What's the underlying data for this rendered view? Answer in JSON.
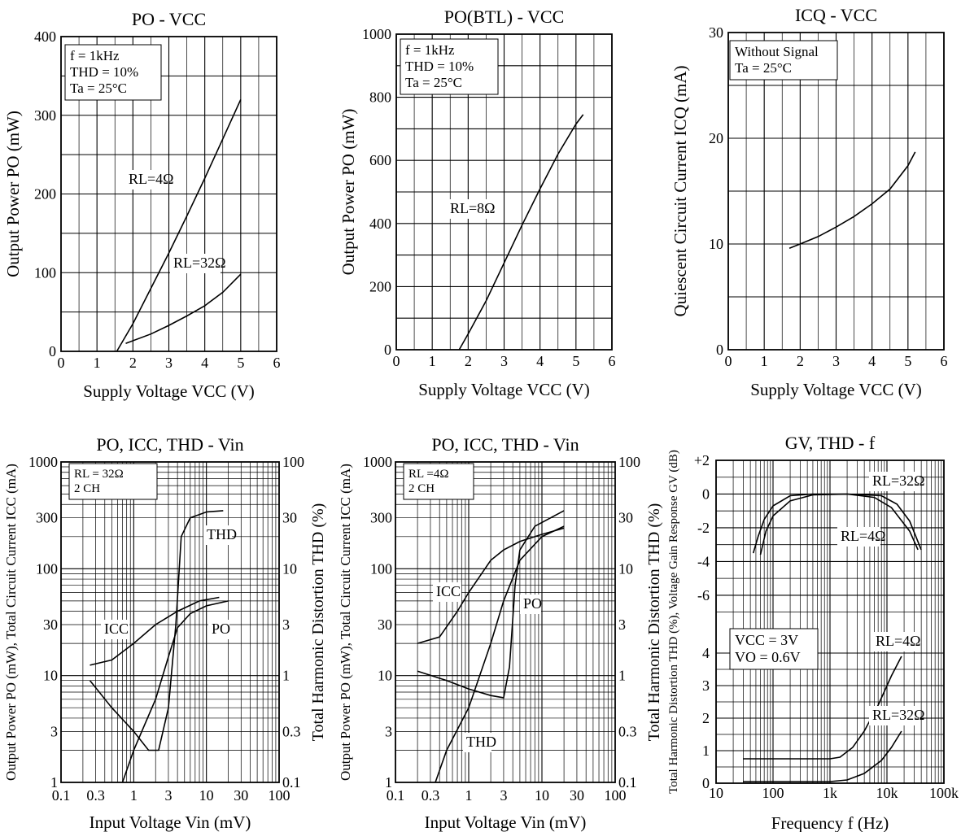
{
  "chart_data": [
    {
      "id": "po_vcc",
      "type": "line",
      "title": "PO - VCC",
      "xlabel": "Supply Voltage VCC (V)",
      "ylabel": "Output Power PO (mW)",
      "xlim": [
        0,
        6
      ],
      "ylim": [
        0,
        400
      ],
      "x_ticks": [
        "0",
        "1",
        "2",
        "3",
        "4",
        "5",
        "6"
      ],
      "y_ticks": [
        "0",
        "100",
        "200",
        "300",
        "400"
      ],
      "conditions": [
        "f = 1kHz",
        "THD = 10%",
        "Ta = 25°C"
      ],
      "series": [
        {
          "name": "RL=4Ω",
          "points": [
            [
              1.55,
              0
            ],
            [
              2.0,
              35
            ],
            [
              2.5,
              80
            ],
            [
              3.0,
              125
            ],
            [
              3.5,
              172
            ],
            [
              4.0,
              220
            ],
            [
              4.5,
              270
            ],
            [
              5.0,
              320
            ]
          ]
        },
        {
          "name": "RL=32Ω",
          "points": [
            [
              1.8,
              10
            ],
            [
              2.5,
              22
            ],
            [
              3.0,
              33
            ],
            [
              3.5,
              45
            ],
            [
              4.0,
              58
            ],
            [
              4.5,
              75
            ],
            [
              5.0,
              98
            ]
          ]
        }
      ]
    },
    {
      "id": "pobtl_vcc",
      "type": "line",
      "title": "PO(BTL) - VCC",
      "xlabel": "Supply Voltage VCC (V)",
      "ylabel": "Output Power PO (mW)",
      "xlim": [
        0,
        6
      ],
      "ylim": [
        0,
        1000
      ],
      "x_ticks": [
        "0",
        "1",
        "2",
        "3",
        "4",
        "5",
        "6"
      ],
      "y_ticks": [
        "0",
        "200",
        "400",
        "600",
        "800",
        "1000"
      ],
      "conditions": [
        "f = 1kHz",
        "THD = 10%",
        "Ta = 25°C"
      ],
      "series": [
        {
          "name": "RL=8Ω",
          "points": [
            [
              1.75,
              0
            ],
            [
              2.0,
              50
            ],
            [
              2.5,
              155
            ],
            [
              3.0,
              275
            ],
            [
              3.5,
              395
            ],
            [
              4.0,
              510
            ],
            [
              4.5,
              620
            ],
            [
              5.0,
              715
            ],
            [
              5.2,
              745
            ]
          ]
        }
      ]
    },
    {
      "id": "icq_vcc",
      "type": "line",
      "title": "ICQ - VCC",
      "xlabel": "Supply Voltage VCC (V)",
      "ylabel": "Quiescent Circuit Current ICQ (mA)",
      "xlim": [
        0,
        6
      ],
      "ylim": [
        0,
        30
      ],
      "x_ticks": [
        "0",
        "1",
        "2",
        "3",
        "4",
        "5",
        "6"
      ],
      "y_ticks": [
        "0",
        "10",
        "20",
        "30"
      ],
      "conditions": [
        "Without Signal",
        "Ta = 25°C"
      ],
      "series": [
        {
          "name": "",
          "points": [
            [
              1.7,
              9.6
            ],
            [
              2.0,
              10.0
            ],
            [
              2.5,
              10.7
            ],
            [
              3.0,
              11.6
            ],
            [
              3.5,
              12.6
            ],
            [
              4.0,
              13.8
            ],
            [
              4.5,
              15.2
            ],
            [
              5.0,
              17.4
            ],
            [
              5.2,
              18.7
            ]
          ]
        }
      ]
    },
    {
      "id": "po_icc_thd_vin_32",
      "type": "line",
      "title": "PO, ICC, THD - Vin",
      "xlabel": "Input Voltage Vin (mV)",
      "ylabel": "Output Power PO (mW), Total Circuit Current ICC (mA)",
      "y2label": "Total Harmonic Distortion THD (%)",
      "x_scale": "log",
      "y_scale": "log",
      "xlim": [
        0.1,
        100
      ],
      "ylim": [
        1,
        1000
      ],
      "y2lim": [
        0.1,
        100
      ],
      "x_ticks": [
        "0.1",
        "0.3",
        "1",
        "3",
        "10",
        "30",
        "100"
      ],
      "y_ticks": [
        "1",
        "3",
        "10",
        "30",
        "100",
        "300",
        "1000"
      ],
      "y2_ticks": [
        "0.1",
        "0.3",
        "1",
        "3",
        "10",
        "30",
        "100"
      ],
      "conditions": [
        "RL = 32Ω",
        "2 CH"
      ],
      "series": [
        {
          "name": "THD",
          "axis": "right",
          "points": [
            [
              0.25,
              0.9
            ],
            [
              0.5,
              0.5
            ],
            [
              1.0,
              0.3
            ],
            [
              1.6,
              0.2
            ],
            [
              2.2,
              0.2
            ],
            [
              3.0,
              0.5
            ],
            [
              3.8,
              3
            ],
            [
              4.5,
              20
            ],
            [
              6,
              30
            ],
            [
              10,
              34
            ],
            [
              17,
              35
            ]
          ]
        },
        {
          "name": "ICC",
          "axis": "left",
          "points": [
            [
              0.25,
              12.5
            ],
            [
              0.5,
              14
            ],
            [
              1.0,
              20
            ],
            [
              2.0,
              30
            ],
            [
              4.0,
              40
            ],
            [
              8.0,
              50
            ],
            [
              15.0,
              54
            ]
          ]
        },
        {
          "name": "PO",
          "axis": "left",
          "points": [
            [
              0.7,
              1
            ],
            [
              1.0,
              2
            ],
            [
              2.0,
              6
            ],
            [
              3.0,
              15
            ],
            [
              4.0,
              28
            ],
            [
              6.0,
              38
            ],
            [
              10.0,
              45
            ],
            [
              20.0,
              50
            ]
          ]
        }
      ]
    },
    {
      "id": "po_icc_thd_vin_4",
      "type": "line",
      "title": "PO, ICC, THD - Vin",
      "xlabel": "Input Voltage Vin (mV)",
      "ylabel": "Output Power PO (mW), Total Circuit Current ICC (mA)",
      "y2label": "Total Harmonic Distortion THD (%)",
      "x_scale": "log",
      "y_scale": "log",
      "xlim": [
        0.1,
        100
      ],
      "ylim": [
        1,
        1000
      ],
      "y2lim": [
        0.1,
        100
      ],
      "x_ticks": [
        "0.1",
        "0.3",
        "1",
        "3",
        "10",
        "30",
        "100"
      ],
      "y_ticks": [
        "1",
        "3",
        "10",
        "30",
        "100",
        "300",
        "1000"
      ],
      "y2_ticks": [
        "0.1",
        "0.3",
        "1",
        "3",
        "10",
        "30",
        "100"
      ],
      "conditions": [
        "RL =4Ω",
        "2 CH"
      ],
      "series": [
        {
          "name": "ICC",
          "axis": "left",
          "points": [
            [
              0.2,
              20
            ],
            [
              0.4,
              23
            ],
            [
              0.7,
              40
            ],
            [
              1.0,
              60
            ],
            [
              2.0,
              120
            ],
            [
              3.0,
              150
            ],
            [
              5.0,
              180
            ],
            [
              10.0,
              210
            ],
            [
              20.0,
              240
            ]
          ]
        },
        {
          "name": "PO",
          "axis": "left",
          "points": [
            [
              0.35,
              1
            ],
            [
              0.5,
              2
            ],
            [
              1.0,
              5
            ],
            [
              2.0,
              20
            ],
            [
              3.0,
              50
            ],
            [
              5.0,
              120
            ],
            [
              10.0,
              200
            ],
            [
              20.0,
              250
            ]
          ]
        },
        {
          "name": "THD",
          "axis": "right",
          "points": [
            [
              0.2,
              1.1
            ],
            [
              0.5,
              0.9
            ],
            [
              1.0,
              0.75
            ],
            [
              2.0,
              0.65
            ],
            [
              3.0,
              0.62
            ],
            [
              3.6,
              1.2
            ],
            [
              4.3,
              7
            ],
            [
              5.0,
              15
            ],
            [
              8.0,
              25
            ],
            [
              20.0,
              35
            ]
          ]
        }
      ]
    },
    {
      "id": "gv_thd_f",
      "type": "line",
      "title": "GV, THD - f",
      "xlabel": "Frequency f (Hz)",
      "ylabel": "Total Harmonic Distortion THD (%), Voltage Gain Response GV (dB)",
      "x_scale": "log",
      "xlim": [
        10,
        100000
      ],
      "x_ticks": [
        "10",
        "100",
        "1k",
        "10k",
        "100k"
      ],
      "gv_ticks": [
        "+2",
        "0",
        "-2",
        "-4",
        "-6"
      ],
      "gv_lim": [
        -7.5,
        2
      ],
      "thd_ticks": [
        "0",
        "1",
        "2",
        "3",
        "4"
      ],
      "thd_lim": [
        0,
        4.5
      ],
      "conditions": [
        "VCC = 3V",
        "VO = 0.6V"
      ],
      "series": [
        {
          "name": "RL=32Ω",
          "kind": "gain",
          "points": [
            [
              45,
              -3.5
            ],
            [
              55,
              -2.5
            ],
            [
              70,
              -1.5
            ],
            [
              100,
              -0.7
            ],
            [
              200,
              -0.1
            ],
            [
              500,
              0
            ],
            [
              2000,
              0
            ],
            [
              8000,
              -0.1
            ],
            [
              15000,
              -0.6
            ],
            [
              25000,
              -1.6
            ],
            [
              40000,
              -3.3
            ]
          ]
        },
        {
          "name": "RL=4Ω",
          "kind": "gain",
          "points": [
            [
              60,
              -3.6
            ],
            [
              75,
              -2.2
            ],
            [
              100,
              -1.3
            ],
            [
              200,
              -0.4
            ],
            [
              500,
              -0.05
            ],
            [
              2000,
              0
            ],
            [
              6000,
              -0.2
            ],
            [
              12000,
              -0.8
            ],
            [
              25000,
              -2.2
            ],
            [
              35000,
              -3.3
            ]
          ]
        },
        {
          "name": "RL=4Ω",
          "kind": "thd",
          "points": [
            [
              30,
              0.75
            ],
            [
              1000,
              0.75
            ],
            [
              1500,
              0.8
            ],
            [
              2500,
              1.1
            ],
            [
              4000,
              1.6
            ],
            [
              7000,
              2.4
            ],
            [
              12000,
              3.3
            ],
            [
              18000,
              3.9
            ]
          ]
        },
        {
          "name": "RL=32Ω",
          "kind": "thd",
          "points": [
            [
              30,
              0.05
            ],
            [
              1000,
              0.05
            ],
            [
              2000,
              0.1
            ],
            [
              4000,
              0.3
            ],
            [
              8000,
              0.7
            ],
            [
              12000,
              1.1
            ],
            [
              18000,
              1.6
            ]
          ]
        }
      ]
    }
  ]
}
